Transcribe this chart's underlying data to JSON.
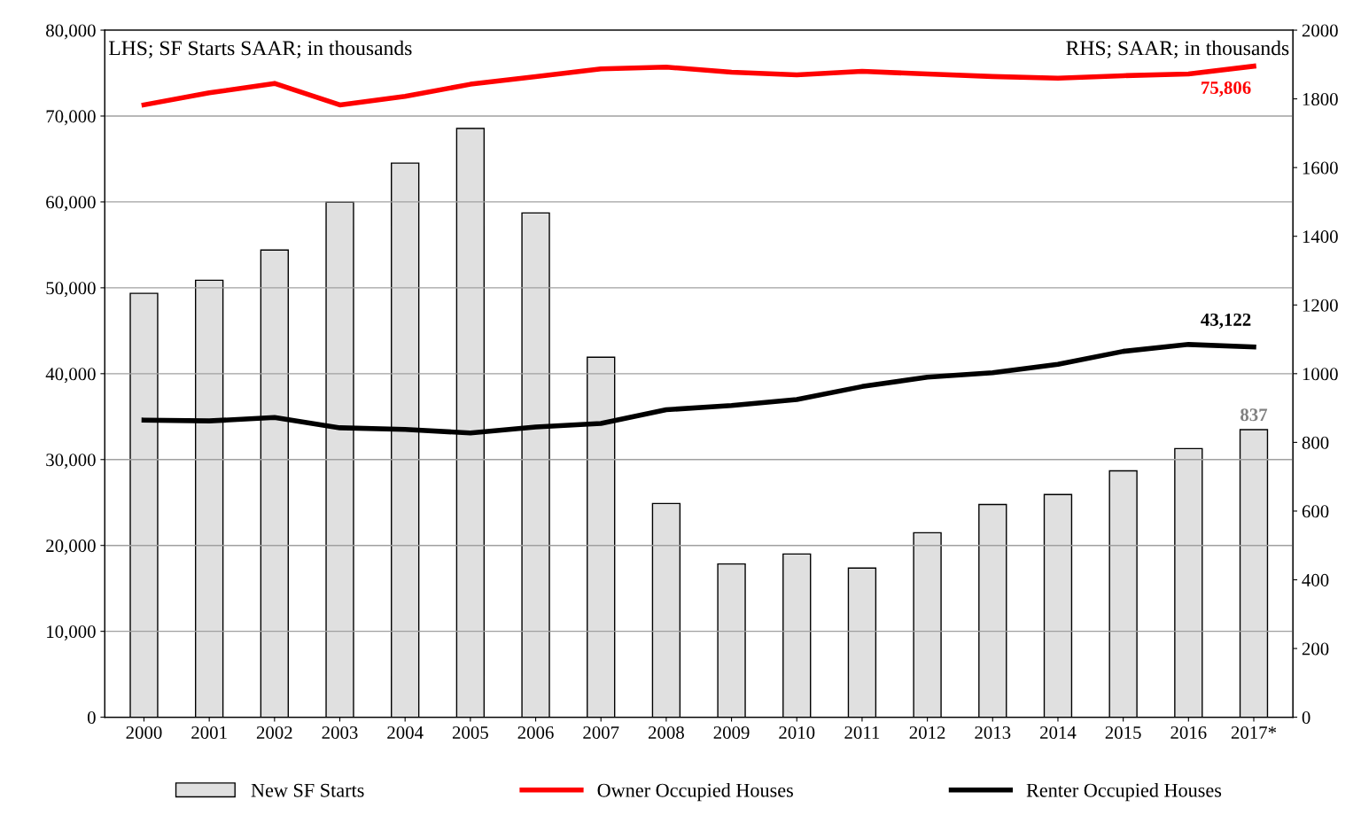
{
  "chart_data": {
    "type": "bar",
    "categories": [
      "2000",
      "2001",
      "2002",
      "2003",
      "2004",
      "2005",
      "2006",
      "2007",
      "2008",
      "2009",
      "2010",
      "2011",
      "2012",
      "2013",
      "2014",
      "2015",
      "2016",
      "2017*"
    ],
    "series": [
      {
        "name": "New SF Starts",
        "axis": "y2",
        "color": "#e0e0e0",
        "values": [
          1234,
          1272,
          1360,
          1499,
          1613,
          1714,
          1468,
          1048,
          622,
          446,
          475,
          434,
          537,
          619,
          648,
          717,
          782,
          837
        ],
        "value_labels": [
          null,
          null,
          null,
          null,
          null,
          null,
          null,
          null,
          null,
          null,
          null,
          null,
          null,
          null,
          null,
          null,
          null,
          "837"
        ]
      },
      {
        "name": "Owner Occupied Houses",
        "type": "line",
        "color": "#ff0000",
        "values": [
          71300,
          72700,
          73800,
          71300,
          72300,
          73700,
          74600,
          75500,
          75700,
          75100,
          74800,
          75200,
          74900,
          74600,
          74400,
          74700,
          74900,
          75806
        ],
        "value_labels": [
          null,
          null,
          null,
          null,
          null,
          null,
          null,
          null,
          null,
          null,
          null,
          null,
          null,
          null,
          null,
          null,
          null,
          "75,806"
        ]
      },
      {
        "name": "Renter Occupied Houses",
        "type": "line",
        "color": "#000000",
        "values": [
          34600,
          34500,
          34900,
          33700,
          33500,
          33100,
          33800,
          34200,
          35800,
          36300,
          37000,
          38500,
          39600,
          40100,
          41100,
          42600,
          43400,
          43122
        ],
        "value_labels": [
          null,
          null,
          null,
          null,
          null,
          null,
          null,
          null,
          null,
          null,
          null,
          null,
          null,
          null,
          null,
          null,
          null,
          "43,122"
        ]
      }
    ],
    "ylim": [
      0,
      80000
    ],
    "yticks": [
      {
        "value": 0,
        "label": "0"
      },
      {
        "value": 10000,
        "label": "10,000"
      },
      {
        "value": 20000,
        "label": "20,000"
      },
      {
        "value": 30000,
        "label": "30,000"
      },
      {
        "value": 40000,
        "label": "40,000"
      },
      {
        "value": 50000,
        "label": "50,000"
      },
      {
        "value": 60000,
        "label": "60,000"
      },
      {
        "value": 70000,
        "label": "70,000"
      },
      {
        "value": 80000,
        "label": "80,000"
      }
    ],
    "y2lim": [
      0,
      2000
    ],
    "y2ticks": [
      0,
      200,
      400,
      600,
      800,
      1000,
      1200,
      1400,
      1600,
      1800,
      2000
    ],
    "annotations": [
      "LHS; SF Starts SAAR; in thousands",
      "RHS; SAAR; in thousands"
    ],
    "grid": "y",
    "legend": "bottom",
    "marker": "none",
    "line_style": "solid"
  }
}
